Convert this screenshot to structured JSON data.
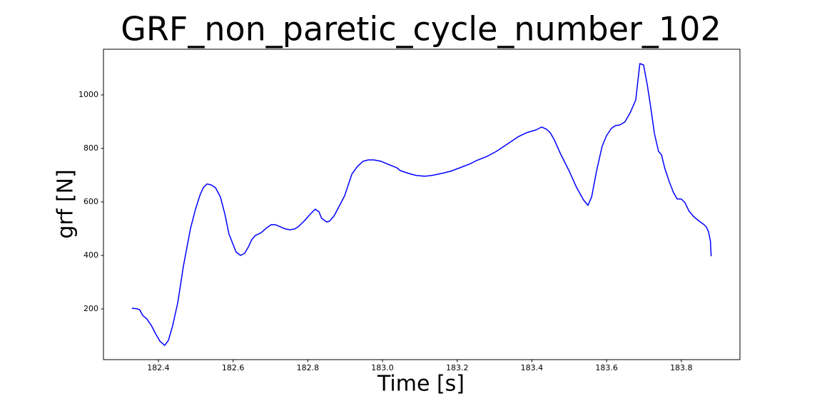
{
  "chart_data": {
    "type": "line",
    "title": "GRF_non_paretic_cycle_number_102",
    "xlabel": "Time [s]",
    "ylabel": "grf [N]",
    "color": "#0000ff",
    "xlim": [
      182.253,
      183.957
    ],
    "ylim": [
      10.7,
      1170.7
    ],
    "xticks": [
      182.4,
      182.6,
      182.8,
      {
        "value": 183,
        "label": "183.0"
      },
      183.2,
      183.4,
      183.6,
      183.8
    ],
    "yticks": [
      200,
      400,
      600,
      800,
      1000
    ],
    "x": [
      182.329,
      182.345,
      182.35,
      182.358,
      182.369,
      182.381,
      182.392,
      182.404,
      182.417,
      182.427,
      182.438,
      182.452,
      182.467,
      182.486,
      182.499,
      182.511,
      182.52,
      182.53,
      182.541,
      182.553,
      182.566,
      182.578,
      182.589,
      182.608,
      182.62,
      182.631,
      182.641,
      182.65,
      182.66,
      182.675,
      182.688,
      182.702,
      182.713,
      182.727,
      182.74,
      182.753,
      182.765,
      182.776,
      182.792,
      182.805,
      182.82,
      182.83,
      182.837,
      182.851,
      182.858,
      182.87,
      182.883,
      182.899,
      182.918,
      182.933,
      182.948,
      182.962,
      182.977,
      182.996,
      183.015,
      183.038,
      183.048,
      183.069,
      183.09,
      183.113,
      183.132,
      183.16,
      183.183,
      183.208,
      183.237,
      183.252,
      183.281,
      183.305,
      183.334,
      183.365,
      183.386,
      183.411,
      183.426,
      183.439,
      183.449,
      183.46,
      183.477,
      183.5,
      183.519,
      183.538,
      183.55,
      183.56,
      183.573,
      183.588,
      183.6,
      183.613,
      183.623,
      183.636,
      183.649,
      183.663,
      183.678,
      183.689,
      183.699,
      183.709,
      183.718,
      183.728,
      183.739,
      183.747,
      183.756,
      183.768,
      183.779,
      183.789,
      183.8,
      183.81,
      183.821,
      183.834,
      183.848,
      183.861,
      183.867,
      183.873,
      183.878,
      183.88
    ],
    "values": [
      203,
      200,
      197,
      176,
      163,
      139,
      109,
      80,
      64,
      83,
      136,
      224,
      360,
      501,
      571,
      624,
      653,
      667,
      664,
      653,
      619,
      555,
      480,
      413,
      400,
      408,
      432,
      459,
      475,
      485,
      501,
      515,
      515,
      507,
      499,
      496,
      499,
      509,
      531,
      552,
      573,
      563,
      539,
      525,
      528,
      547,
      581,
      624,
      704,
      733,
      752,
      757,
      757,
      752,
      741,
      728,
      717,
      707,
      699,
      696,
      699,
      707,
      715,
      728,
      744,
      755,
      771,
      789,
      816,
      845,
      859,
      869,
      880,
      872,
      859,
      832,
      779,
      715,
      656,
      608,
      587,
      619,
      715,
      808,
      848,
      875,
      885,
      888,
      899,
      933,
      981,
      1117,
      1112,
      1037,
      955,
      856,
      789,
      776,
      725,
      675,
      635,
      611,
      611,
      597,
      565,
      544,
      528,
      515,
      507,
      488,
      453,
      397
    ]
  }
}
